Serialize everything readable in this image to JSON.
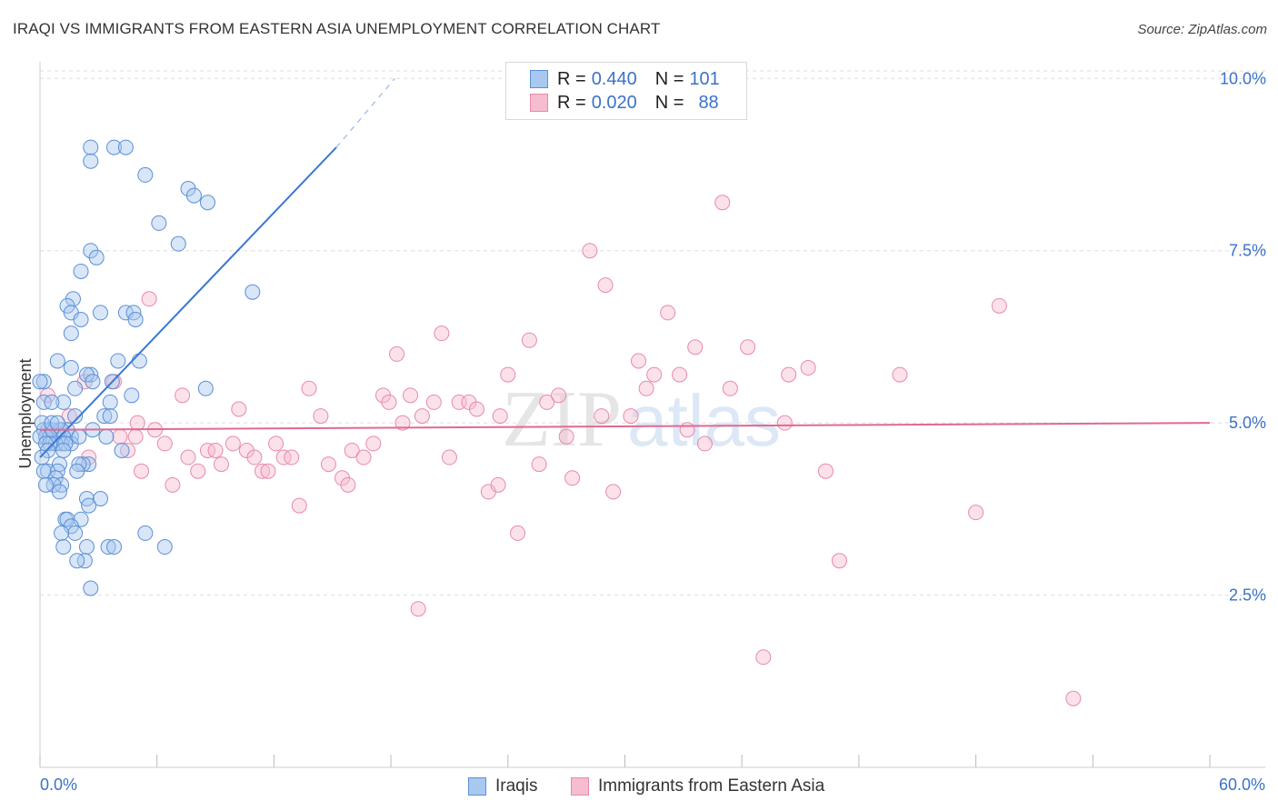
{
  "title": "IRAQI VS IMMIGRANTS FROM EASTERN ASIA UNEMPLOYMENT CORRELATION CHART",
  "source": "Source: ZipAtlas.com",
  "watermark": {
    "zip": "ZIP",
    "atlas": "atlas"
  },
  "legend_top": {
    "rows": [
      {
        "r_label": "R =",
        "r_value": "0.440",
        "n_label": "N =",
        "n_value": "101"
      },
      {
        "r_label": "R =",
        "r_value": "0.020",
        "n_label": "N =",
        "n_value": "88"
      }
    ]
  },
  "colors": {
    "iraqis_fill": "#a9c8f0",
    "iraqis_stroke": "#5b8fd6",
    "iraqis_line": "#3a78d4",
    "eastasia_fill": "#f6bcd0",
    "eastasia_stroke": "#e88aaa",
    "eastasia_line": "#e06a93",
    "tick_label": "#3a72c8",
    "grid": "#dddddd"
  },
  "chart_data": {
    "type": "scatter",
    "title": "IRAQI VS IMMIGRANTS FROM EASTERN ASIA UNEMPLOYMENT CORRELATION CHART",
    "xlabel": "",
    "ylabel": "Unemployment",
    "xlim": [
      0,
      60
    ],
    "ylim": [
      0,
      10.4
    ],
    "x_tick_labels": [
      "0.0%",
      "60.0%"
    ],
    "y_ticks": [
      2.5,
      5.0,
      7.5,
      10.0
    ],
    "y_tick_labels": [
      "2.5%",
      "5.0%",
      "7.5%",
      "10.0%"
    ],
    "grid": true,
    "legend_position": "bottom",
    "series": [
      {
        "name": "Iraqis",
        "r": 0.44,
        "n": 101,
        "trend": {
          "x": [
            0.0,
            15.2
          ],
          "y": [
            4.5,
            9.0
          ],
          "dashed_to": [
            18.2,
            10.0
          ]
        },
        "points": [
          [
            2.6,
            9.0
          ],
          [
            3.8,
            9.0
          ],
          [
            4.4,
            9.0
          ],
          [
            2.6,
            8.8
          ],
          [
            5.4,
            8.6
          ],
          [
            7.6,
            8.4
          ],
          [
            7.9,
            8.3
          ],
          [
            8.6,
            8.2
          ],
          [
            6.1,
            7.9
          ],
          [
            7.1,
            7.6
          ],
          [
            2.6,
            7.5
          ],
          [
            2.9,
            7.4
          ],
          [
            2.1,
            7.2
          ],
          [
            10.9,
            6.9
          ],
          [
            1.7,
            6.8
          ],
          [
            1.4,
            6.7
          ],
          [
            1.6,
            6.6
          ],
          [
            3.1,
            6.6
          ],
          [
            4.4,
            6.6
          ],
          [
            4.8,
            6.6
          ],
          [
            2.1,
            6.5
          ],
          [
            4.9,
            6.5
          ],
          [
            1.6,
            6.3
          ],
          [
            0.9,
            5.9
          ],
          [
            4.0,
            5.9
          ],
          [
            5.1,
            5.9
          ],
          [
            1.6,
            5.8
          ],
          [
            2.6,
            5.7
          ],
          [
            2.4,
            5.7
          ],
          [
            0.2,
            5.6
          ],
          [
            3.7,
            5.6
          ],
          [
            2.7,
            5.6
          ],
          [
            0.0,
            5.6
          ],
          [
            1.8,
            5.5
          ],
          [
            8.5,
            5.5
          ],
          [
            4.7,
            5.4
          ],
          [
            1.2,
            5.3
          ],
          [
            0.2,
            5.3
          ],
          [
            3.6,
            5.3
          ],
          [
            0.6,
            5.3
          ],
          [
            3.3,
            5.1
          ],
          [
            3.6,
            5.1
          ],
          [
            1.8,
            5.1
          ],
          [
            2.7,
            4.9
          ],
          [
            0.4,
            4.9
          ],
          [
            0.2,
            4.9
          ],
          [
            1.0,
            4.9
          ],
          [
            1.4,
            4.9
          ],
          [
            1.1,
            4.9
          ],
          [
            0.6,
            4.9
          ],
          [
            0.3,
            4.8
          ],
          [
            0.5,
            4.8
          ],
          [
            0.0,
            4.8
          ],
          [
            1.6,
            4.8
          ],
          [
            3.4,
            4.8
          ],
          [
            1.2,
            4.8
          ],
          [
            1.1,
            4.7
          ],
          [
            0.8,
            4.7
          ],
          [
            0.5,
            4.7
          ],
          [
            0.3,
            4.7
          ],
          [
            1.6,
            4.7
          ],
          [
            1.3,
            4.7
          ],
          [
            1.2,
            4.6
          ],
          [
            0.4,
            4.6
          ],
          [
            4.2,
            4.6
          ],
          [
            0.1,
            4.5
          ],
          [
            2.5,
            4.4
          ],
          [
            2.2,
            4.4
          ],
          [
            1.0,
            4.4
          ],
          [
            2.0,
            4.4
          ],
          [
            1.9,
            4.3
          ],
          [
            0.4,
            4.3
          ],
          [
            0.2,
            4.3
          ],
          [
            0.9,
            4.3
          ],
          [
            0.8,
            4.2
          ],
          [
            1.1,
            4.1
          ],
          [
            0.7,
            4.1
          ],
          [
            0.3,
            4.1
          ],
          [
            1.0,
            4.0
          ],
          [
            2.4,
            3.9
          ],
          [
            3.1,
            3.9
          ],
          [
            2.5,
            3.8
          ],
          [
            1.3,
            3.6
          ],
          [
            1.4,
            3.6
          ],
          [
            2.1,
            3.6
          ],
          [
            1.6,
            3.5
          ],
          [
            1.8,
            3.4
          ],
          [
            1.1,
            3.4
          ],
          [
            5.4,
            3.4
          ],
          [
            3.5,
            3.2
          ],
          [
            3.8,
            3.2
          ],
          [
            2.4,
            3.2
          ],
          [
            6.4,
            3.2
          ],
          [
            1.2,
            3.2
          ],
          [
            2.3,
            3.0
          ],
          [
            1.9,
            3.0
          ],
          [
            2.6,
            2.6
          ],
          [
            0.1,
            5.0
          ],
          [
            0.6,
            5.0
          ],
          [
            2.0,
            4.8
          ],
          [
            0.9,
            5.0
          ]
        ]
      },
      {
        "name": "Immigrants from Eastern Asia",
        "r": 0.02,
        "n": 88,
        "trend": {
          "x": [
            0.0,
            60.0
          ],
          "y": [
            4.9,
            5.0
          ]
        },
        "points": [
          [
            0.4,
            5.4
          ],
          [
            1.5,
            5.1
          ],
          [
            4.9,
            4.8
          ],
          [
            2.3,
            5.6
          ],
          [
            2.5,
            4.5
          ],
          [
            3.8,
            5.6
          ],
          [
            4.1,
            4.8
          ],
          [
            4.5,
            4.6
          ],
          [
            5.0,
            5.0
          ],
          [
            5.2,
            4.3
          ],
          [
            5.6,
            6.8
          ],
          [
            5.9,
            4.9
          ],
          [
            6.4,
            4.7
          ],
          [
            6.8,
            4.1
          ],
          [
            7.3,
            5.4
          ],
          [
            7.6,
            4.5
          ],
          [
            8.1,
            4.3
          ],
          [
            8.6,
            4.6
          ],
          [
            9.0,
            4.6
          ],
          [
            9.3,
            4.4
          ],
          [
            9.9,
            4.7
          ],
          [
            10.2,
            5.2
          ],
          [
            10.6,
            4.6
          ],
          [
            11.0,
            4.5
          ],
          [
            11.4,
            4.3
          ],
          [
            11.7,
            4.3
          ],
          [
            12.1,
            4.7
          ],
          [
            12.5,
            4.5
          ],
          [
            12.9,
            4.5
          ],
          [
            13.3,
            3.8
          ],
          [
            13.8,
            5.5
          ],
          [
            14.4,
            5.1
          ],
          [
            14.8,
            4.4
          ],
          [
            15.5,
            4.2
          ],
          [
            15.8,
            4.1
          ],
          [
            16.0,
            4.6
          ],
          [
            16.6,
            4.5
          ],
          [
            17.1,
            4.7
          ],
          [
            17.6,
            5.4
          ],
          [
            17.9,
            5.3
          ],
          [
            18.3,
            6.0
          ],
          [
            18.6,
            5.0
          ],
          [
            19.0,
            5.4
          ],
          [
            19.4,
            2.3
          ],
          [
            19.6,
            5.1
          ],
          [
            20.2,
            5.3
          ],
          [
            20.6,
            6.3
          ],
          [
            21.0,
            4.5
          ],
          [
            21.5,
            5.3
          ],
          [
            22.0,
            5.3
          ],
          [
            22.4,
            5.2
          ],
          [
            23.0,
            4.0
          ],
          [
            23.5,
            4.1
          ],
          [
            24.0,
            5.7
          ],
          [
            24.5,
            3.4
          ],
          [
            25.1,
            6.2
          ],
          [
            25.6,
            4.4
          ],
          [
            26.0,
            5.3
          ],
          [
            26.6,
            5.4
          ],
          [
            27.0,
            4.8
          ],
          [
            27.3,
            4.2
          ],
          [
            28.2,
            7.5
          ],
          [
            29.0,
            7.0
          ],
          [
            29.4,
            4.0
          ],
          [
            30.3,
            5.1
          ],
          [
            30.7,
            5.9
          ],
          [
            31.1,
            5.5
          ],
          [
            31.5,
            5.7
          ],
          [
            32.2,
            6.6
          ],
          [
            32.8,
            5.7
          ],
          [
            33.2,
            4.9
          ],
          [
            33.6,
            6.1
          ],
          [
            34.1,
            4.7
          ],
          [
            35.0,
            8.2
          ],
          [
            35.4,
            5.5
          ],
          [
            36.3,
            6.1
          ],
          [
            37.1,
            1.6
          ],
          [
            38.4,
            5.7
          ],
          [
            38.2,
            5.0
          ],
          [
            39.4,
            5.8
          ],
          [
            40.3,
            4.3
          ],
          [
            41.0,
            3.0
          ],
          [
            44.1,
            5.7
          ],
          [
            48.0,
            3.7
          ],
          [
            49.2,
            6.7
          ],
          [
            53.0,
            1.0
          ],
          [
            23.6,
            5.1
          ],
          [
            28.8,
            5.1
          ]
        ]
      }
    ]
  },
  "legend_bottom": [
    {
      "label": "Iraqis"
    },
    {
      "label": "Immigrants from Eastern Asia"
    }
  ]
}
